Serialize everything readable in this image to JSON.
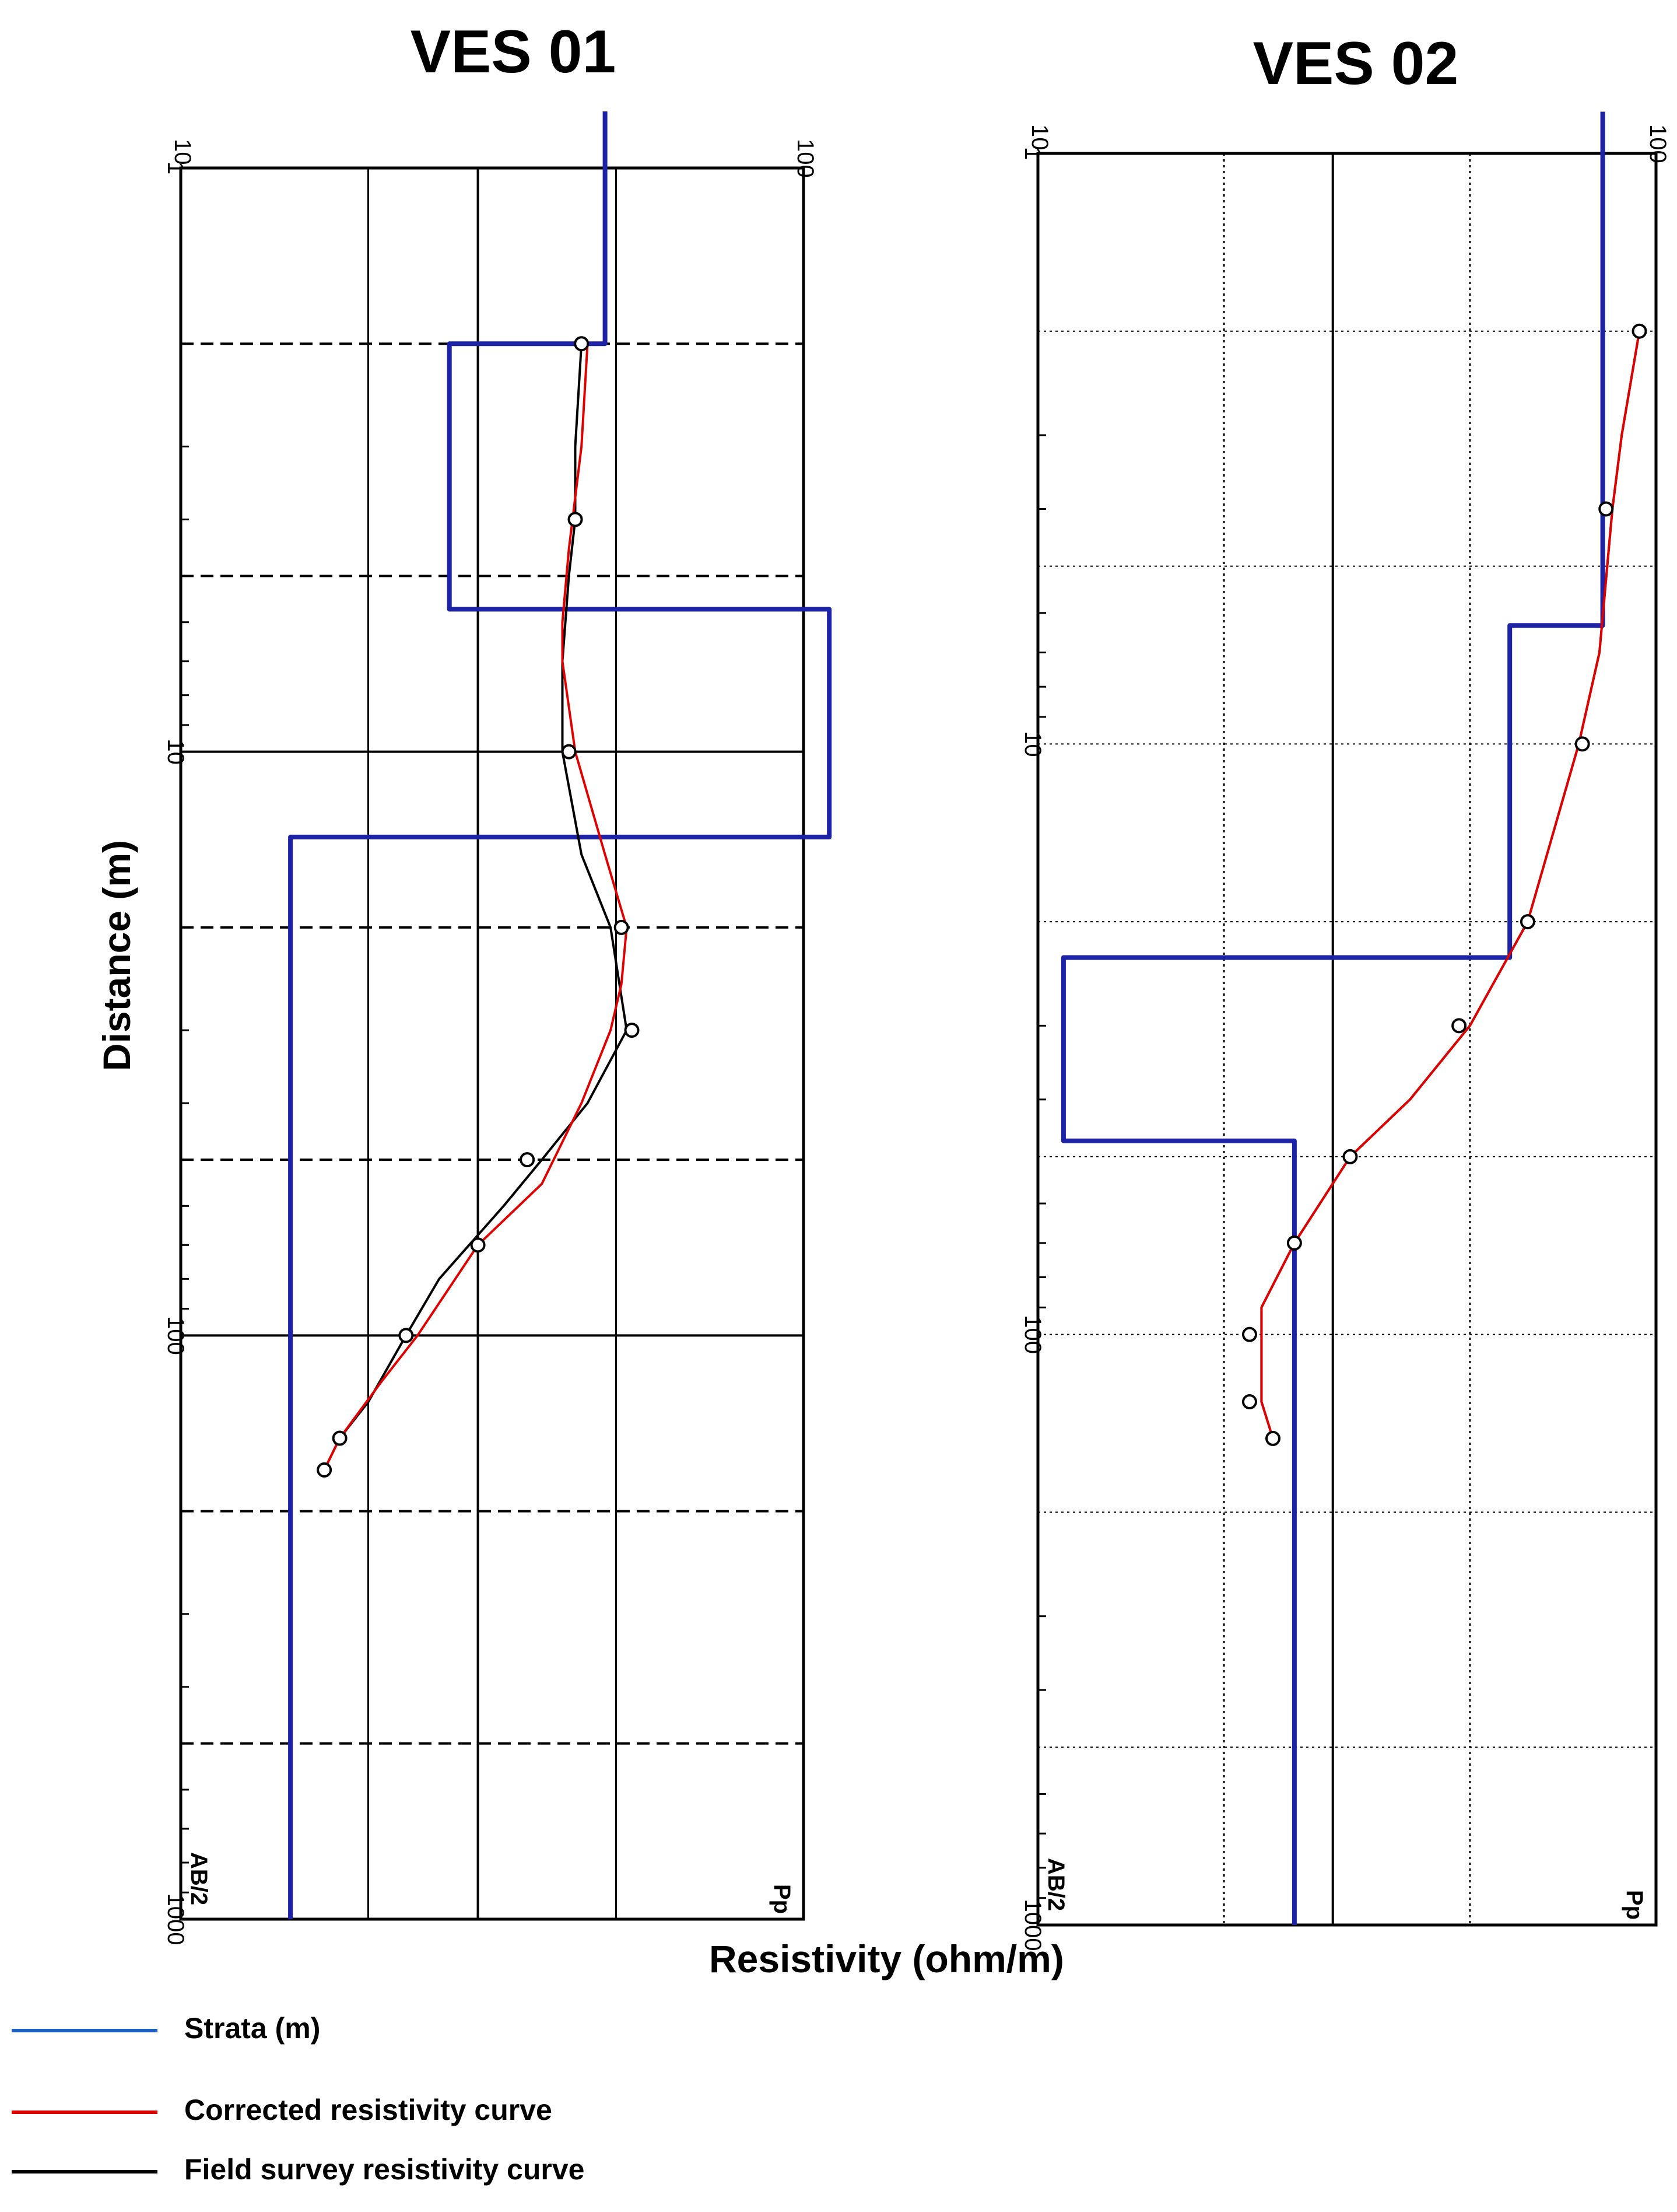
{
  "charts": [
    {
      "title": "VES 01"
    },
    {
      "title": "VES 02"
    }
  ],
  "axes": {
    "ylabel": "Distance (m)",
    "xlabel": "Resistivity (ohm/m)",
    "top_tick_labels": [
      "10",
      "100"
    ],
    "left_tick_labels": [
      "1",
      "10",
      "100",
      "1000"
    ],
    "corner_left": "AB/2",
    "corner_right": "Pp"
  },
  "legend": [
    {
      "label": "Strata (m)",
      "color": "#1f5fbf"
    },
    {
      "label": "Corrected resistivity curve",
      "color": "#e00000"
    },
    {
      "label": "Field survey resistivity curve",
      "color": "#000000"
    }
  ],
  "colors": {
    "strata": "#1c23a6",
    "corrected": "#e00000",
    "field": "#000000",
    "grid": "#000000"
  },
  "chart_data": [
    {
      "type": "line",
      "title": "VES 01",
      "xlabel": "Resistivity (ohm/m)",
      "ylabel": "Distance (m)",
      "x_scale": "log",
      "y_scale": "log",
      "xlim": [
        10,
        100
      ],
      "ylim": [
        1,
        1000
      ],
      "x_ticks": [
        10,
        100
      ],
      "y_ticks": [
        1,
        10,
        100,
        1000
      ],
      "series": [
        {
          "name": "Strata (m)",
          "kind": "step",
          "points": [
            [
              48,
              0.8
            ],
            [
              48,
              2
            ],
            [
              27,
              2
            ],
            [
              27,
              5.7
            ],
            [
              110,
              5.7
            ],
            [
              110,
              14
            ],
            [
              15,
              14
            ],
            [
              15,
              1000
            ]
          ]
        },
        {
          "name": "Field survey resistivity curve",
          "kind": "line",
          "points": [
            [
              44,
              2
            ],
            [
              43,
              3
            ],
            [
              43,
              4
            ],
            [
              42,
              5
            ],
            [
              41,
              7
            ],
            [
              41,
              10
            ],
            [
              44,
              15
            ],
            [
              49,
              20
            ],
            [
              52,
              30
            ],
            [
              45,
              40
            ],
            [
              38,
              50
            ],
            [
              33,
              60
            ],
            [
              26,
              80
            ],
            [
              23,
              100
            ],
            [
              20,
              130
            ],
            [
              18,
              150
            ],
            [
              17,
              170
            ]
          ],
          "markers": [
            [
              44,
              2
            ],
            [
              43,
              4
            ],
            [
              42,
              10
            ],
            [
              51,
              20
            ],
            [
              53,
              30
            ],
            [
              36,
              50
            ],
            [
              30,
              70
            ],
            [
              23,
              100
            ],
            [
              18,
              150
            ],
            [
              17,
              170
            ]
          ]
        },
        {
          "name": "Corrected resistivity curve",
          "kind": "line",
          "points": [
            [
              45,
              2
            ],
            [
              44,
              3
            ],
            [
              42,
              4.5
            ],
            [
              41,
              6
            ],
            [
              41,
              7
            ],
            [
              43,
              10
            ],
            [
              48,
              15
            ],
            [
              52,
              20
            ],
            [
              51,
              25
            ],
            [
              49,
              30
            ],
            [
              44,
              40
            ],
            [
              38,
              55
            ],
            [
              30,
              70
            ],
            [
              24,
              100
            ],
            [
              21,
              120
            ],
            [
              18,
              150
            ],
            [
              17,
              170
            ]
          ]
        }
      ]
    },
    {
      "type": "line",
      "title": "VES 02",
      "xlabel": "Resistivity (ohm/m)",
      "ylabel": "Distance (m)",
      "x_scale": "log",
      "y_scale": "log",
      "xlim": [
        10,
        100
      ],
      "ylim": [
        1,
        1000
      ],
      "x_ticks": [
        10,
        100
      ],
      "y_ticks": [
        1,
        10,
        100,
        1000
      ],
      "series": [
        {
          "name": "Strata (m)",
          "kind": "step",
          "points": [
            [
              82,
              0.85
            ],
            [
              82,
              6.3
            ],
            [
              58,
              6.3
            ],
            [
              58,
              23
            ],
            [
              11,
              23
            ],
            [
              11,
              47
            ],
            [
              26,
              47
            ],
            [
              26,
              1000
            ]
          ]
        },
        {
          "name": "Field survey resistivity curve",
          "kind": "line",
          "points": [
            [
              94,
              2
            ],
            [
              88,
              3
            ],
            [
              85,
              4
            ],
            [
              81,
              7
            ],
            [
              75,
              10
            ],
            [
              62,
              20
            ],
            [
              50,
              30
            ],
            [
              40,
              40
            ],
            [
              32,
              50
            ],
            [
              26,
              70
            ],
            [
              23,
              90
            ],
            [
              23,
              100
            ],
            [
              23,
              120
            ],
            [
              23,
              130
            ],
            [
              24,
              150
            ]
          ],
          "markers": [
            [
              94,
              2
            ],
            [
              83,
              4
            ],
            [
              76,
              10
            ],
            [
              62,
              20
            ],
            [
              48,
              30
            ],
            [
              32,
              50
            ],
            [
              26,
              70
            ],
            [
              22,
              100
            ],
            [
              22,
              130
            ],
            [
              24,
              150
            ]
          ]
        },
        {
          "name": "Corrected resistivity curve",
          "kind": "line",
          "points": [
            [
              94,
              2
            ],
            [
              88,
              3
            ],
            [
              85,
              4
            ],
            [
              81,
              7
            ],
            [
              75,
              10
            ],
            [
              62,
              20
            ],
            [
              50,
              30
            ],
            [
              40,
              40
            ],
            [
              32,
              50
            ],
            [
              26,
              70
            ],
            [
              23,
              90
            ],
            [
              23,
              100
            ],
            [
              23,
              120
            ],
            [
              23,
              130
            ],
            [
              24,
              150
            ]
          ]
        }
      ]
    }
  ]
}
